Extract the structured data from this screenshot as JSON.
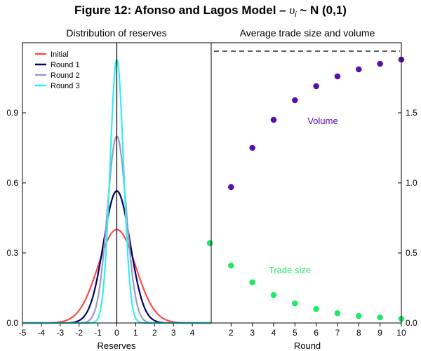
{
  "figure": {
    "title_prefix": "Figure 12: Afonso and Lagos Model – ",
    "title_var": "υ",
    "title_sub": "i",
    "title_suffix": " ~ N (0,1)"
  },
  "chart_data": [
    {
      "type": "line",
      "title": "Distribution of reserves",
      "xlabel": "Reserves",
      "ylabel": "",
      "xlim": [
        -5,
        5
      ],
      "ylim": [
        0,
        1.2
      ],
      "xticks": [
        -5,
        -4,
        -3,
        -2,
        -1,
        0,
        1,
        2,
        3,
        4
      ],
      "yticks": [
        0.0,
        0.3,
        0.6,
        0.9
      ],
      "ytick_labels": [
        "0.0",
        "0.3",
        "0.6",
        "0.9"
      ],
      "vline_x": 0,
      "legend_position": "top-left",
      "series": [
        {
          "name": "Initial",
          "color": "#ff4a4a",
          "peak": 0.4,
          "sd": 1.0
        },
        {
          "name": "Round 1",
          "color": "#000066",
          "peak": 0.565,
          "sd": 0.707
        },
        {
          "name": "Round 2",
          "color": "#9999cc",
          "peak": 0.8,
          "sd": 0.5
        },
        {
          "name": "Round 3",
          "color": "#33eeee",
          "peak": 1.128,
          "sd": 0.354
        }
      ]
    },
    {
      "type": "scatter",
      "title": "Average trade size and volume",
      "xlabel": "Round",
      "xlim": [
        1,
        10
      ],
      "ylim": [
        0,
        2.0
      ],
      "xticks": [
        2,
        3,
        4,
        5,
        6,
        7,
        8,
        9,
        10
      ],
      "yticks": [
        0.0,
        0.5,
        1.0,
        1.5
      ],
      "ytick_labels": [
        "0.0",
        "0.5",
        "1.0",
        "1.5"
      ],
      "dashed_asymptote": 1.94,
      "series": [
        {
          "name": "Volume",
          "color": "#5b0fa8",
          "x": [
            2,
            3,
            4,
            5,
            6,
            7,
            8,
            9,
            10
          ],
          "y": [
            0.97,
            1.25,
            1.45,
            1.59,
            1.69,
            1.76,
            1.81,
            1.85,
            1.88
          ]
        },
        {
          "name": "Trade size",
          "color": "#22e86a",
          "x": [
            1,
            2,
            3,
            4,
            5,
            6,
            7,
            8,
            9,
            10
          ],
          "y": [
            0.57,
            0.41,
            0.29,
            0.2,
            0.14,
            0.1,
            0.07,
            0.05,
            0.04,
            0.03
          ]
        }
      ]
    }
  ]
}
